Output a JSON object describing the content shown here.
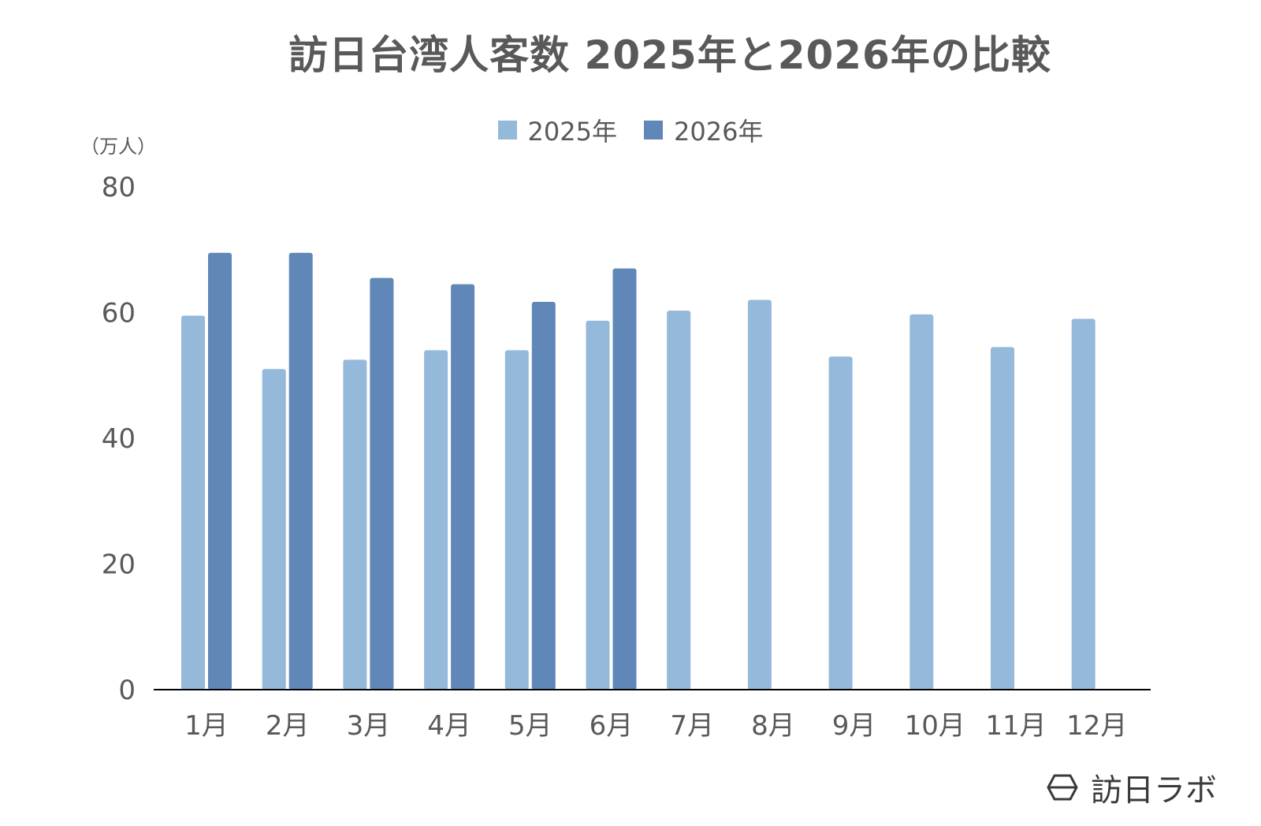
{
  "chart_data": {
    "type": "bar",
    "title": "訪日台湾人客数 2025年と2026年の比較",
    "ylabel": "（万人）",
    "xlabel": "",
    "ylim": [
      0,
      80
    ],
    "yticks": [
      0,
      20,
      40,
      60,
      80
    ],
    "categories": [
      "1月",
      "2月",
      "3月",
      "4月",
      "5月",
      "6月",
      "7月",
      "8月",
      "9月",
      "10月",
      "11月",
      "12月"
    ],
    "series": [
      {
        "name": "2025年",
        "color": "#95b9da",
        "values": [
          59.5,
          51,
          52.5,
          54,
          54,
          58.7,
          60.3,
          62,
          53,
          59.7,
          54.5,
          59
        ]
      },
      {
        "name": "2026年",
        "color": "#5f87b8",
        "values": [
          69.5,
          69.5,
          65.5,
          64.5,
          61.7,
          67,
          null,
          null,
          null,
          null,
          null,
          null
        ]
      }
    ],
    "legend_position": "top-center",
    "grid": false
  },
  "brand": {
    "name": "訪日ラボ",
    "icon": "hexagon-logo-icon"
  },
  "colors": {
    "text": "#595959",
    "axis": "#000000"
  }
}
